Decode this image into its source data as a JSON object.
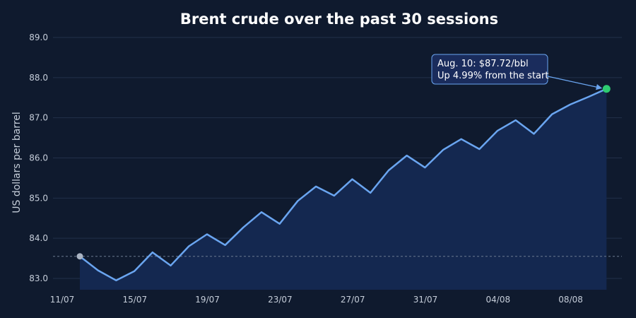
{
  "chart_data": {
    "type": "area",
    "title": "Brent crude over the past 30 sessions",
    "ylabel": "US dollars per barrel",
    "xlabel": "",
    "ylim": [
      82.7,
      89.0
    ],
    "yticks": [
      83.0,
      84.0,
      85.0,
      86.0,
      87.0,
      88.0,
      89.0
    ],
    "ytick_labels": [
      "83.0",
      "84.0",
      "85.0",
      "86.0",
      "87.0",
      "88.0",
      "89.0"
    ],
    "x": [
      "12/07",
      "13/07",
      "14/07",
      "15/07",
      "16/07",
      "17/07",
      "18/07",
      "19/07",
      "20/07",
      "21/07",
      "22/07",
      "23/07",
      "24/07",
      "25/07",
      "26/07",
      "27/07",
      "28/07",
      "29/07",
      "30/07",
      "31/07",
      "01/08",
      "02/08",
      "03/08",
      "04/08",
      "05/08",
      "06/08",
      "07/08",
      "08/08",
      "09/08",
      "10/08"
    ],
    "xticks": [
      "11/07",
      "15/07",
      "19/07",
      "23/07",
      "27/07",
      "31/07",
      "04/08",
      "08/08"
    ],
    "values": [
      83.55,
      83.2,
      82.95,
      83.18,
      83.65,
      83.32,
      83.8,
      84.1,
      83.83,
      84.27,
      84.65,
      84.36,
      84.93,
      85.29,
      85.06,
      85.47,
      85.13,
      85.69,
      86.06,
      85.76,
      86.2,
      86.47,
      86.22,
      86.68,
      86.94,
      86.6,
      87.09,
      87.33,
      87.52,
      87.72
    ],
    "reference_line": 83.55,
    "annotation": {
      "line1": "Aug. 10: $87.72/bbl",
      "line2": "Up 4.99% from the start"
    },
    "grid": true,
    "colors": {
      "background": "#0f1a2e",
      "line": "#6aa5f0",
      "area": "#142850",
      "start_marker": "#aab4c3",
      "end_marker": "#2ecc71",
      "annotation_fill": "#1a2c5c",
      "annotation_border": "#6aa5f0"
    }
  }
}
